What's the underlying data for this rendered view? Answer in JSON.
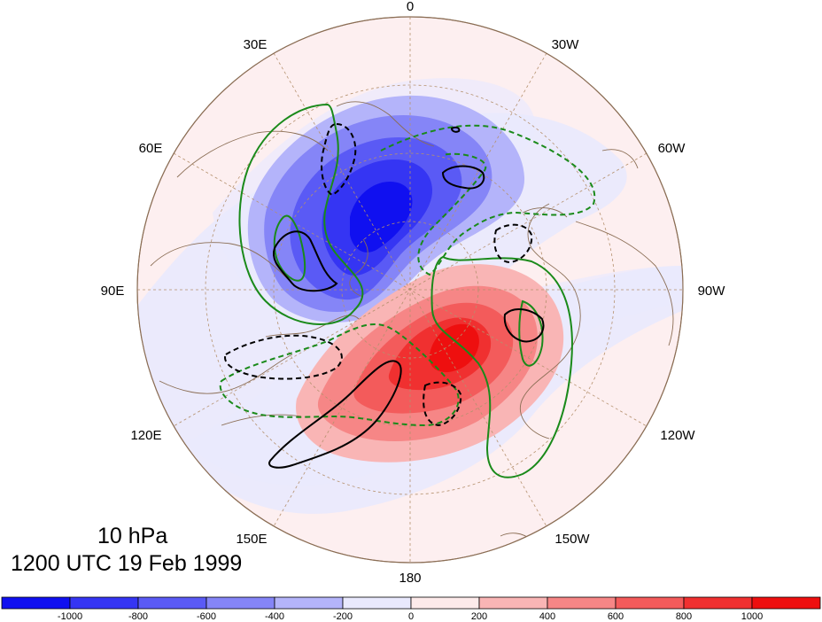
{
  "map": {
    "projection": "north-polar-stereographic",
    "longitude_labels": [
      "0",
      "30W",
      "60W",
      "90W",
      "120W",
      "150W",
      "180",
      "150E",
      "120E",
      "90E",
      "60E",
      "30E"
    ],
    "fill_negative_color": "#1a1aff",
    "fill_positive_color": "#ff1a1a",
    "contour_green": "#1a8a1a",
    "contour_black": "#000000",
    "coastline_color": "#8b6e55"
  },
  "title": {
    "level": "10 hPa",
    "time": "1200 UTC 19 Feb 1999"
  },
  "colorbar": {
    "labels": [
      "-1000",
      "-800",
      "-600",
      "-400",
      "-200",
      "0",
      "200",
      "400",
      "600",
      "800",
      "1000"
    ],
    "colors": [
      "#1010f0",
      "#3535f3",
      "#5a5af5",
      "#8585f7",
      "#b4b4fa",
      "#e9e9fd",
      "#fdeaea",
      "#f9b5b5",
      "#f68686",
      "#f35b5b",
      "#f03030",
      "#ee0f0f"
    ]
  }
}
